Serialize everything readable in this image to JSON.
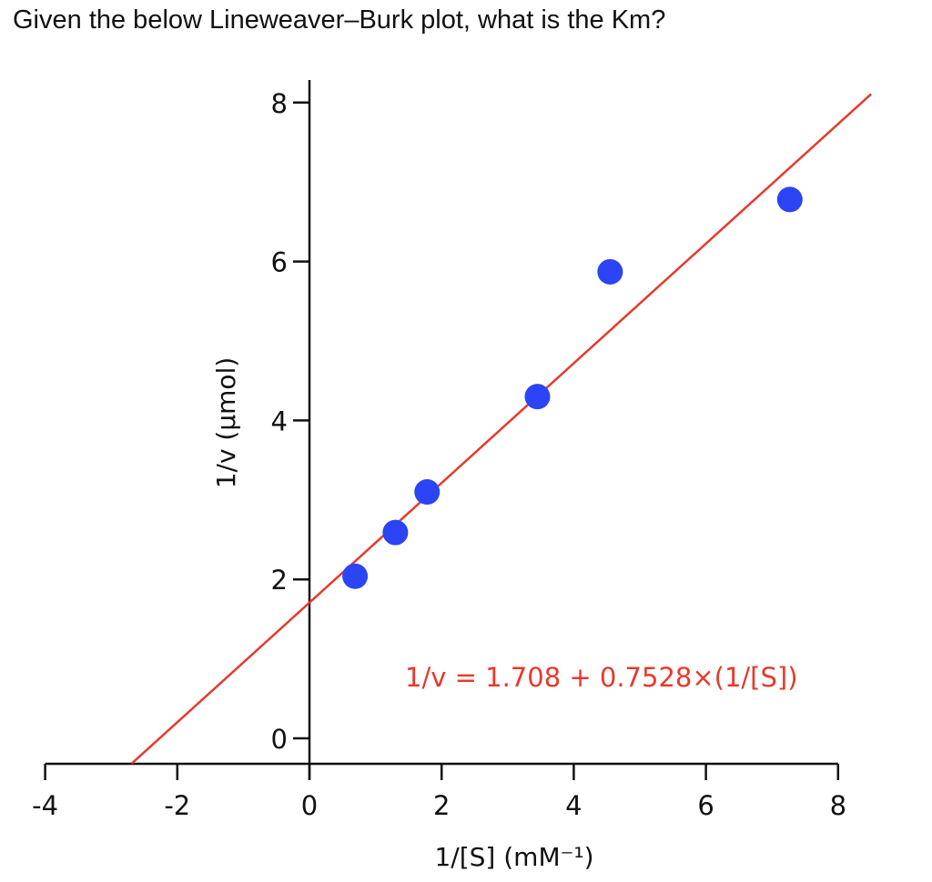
{
  "question": "Given the below Lineweaver–Burk plot, what is the Km?",
  "chart_data": {
    "type": "scatter",
    "xlabel": "1/[S] (mM⁻¹)",
    "ylabel": "1/v (µmol)",
    "xlim": [
      -4,
      8
    ],
    "ylim": [
      0,
      8
    ],
    "x_ticks": [
      "-4",
      "-2",
      "0",
      "2",
      "4",
      "6",
      "8"
    ],
    "y_ticks": [
      "0",
      "2",
      "4",
      "6",
      "8"
    ],
    "grid": false,
    "points": [
      {
        "x": 0.69,
        "y": 2.04
      },
      {
        "x": 1.3,
        "y": 2.59
      },
      {
        "x": 1.78,
        "y": 3.1
      },
      {
        "x": 3.45,
        "y": 4.3
      },
      {
        "x": 4.55,
        "y": 5.87
      },
      {
        "x": 7.27,
        "y": 6.78
      }
    ],
    "fit": {
      "intercept": 1.708,
      "slope": 0.7528,
      "x_range": [
        -2.69,
        8.5
      ]
    },
    "equation_label": "1/v = 1.708 + 0.7528×(1/[S])",
    "colors": {
      "points": "#2b44f5",
      "fit": "#e8392c",
      "axes": "#111111"
    }
  }
}
